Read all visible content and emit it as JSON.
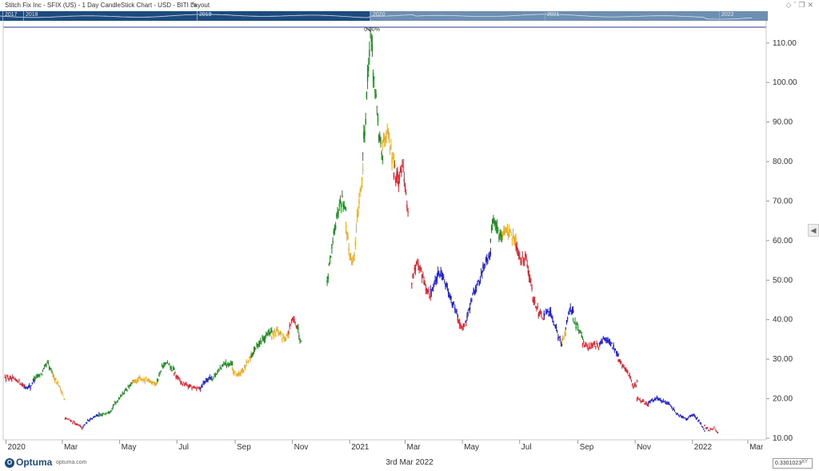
{
  "window": {
    "title": "Stitch Fix Inc  - SFIX (US) - 1 Day CandleStick Chart - USD - BITI Layout",
    "icons": [
      "diamond-icon",
      "chevron-up-icon",
      "restore-icon",
      "close-icon"
    ]
  },
  "navigator": {
    "years": [
      "2017",
      "2018",
      "2019",
      "2020",
      "2021",
      "2022"
    ]
  },
  "chart_data": {
    "type": "candlestick",
    "ylim": [
      10,
      114
    ],
    "y_ticks": [
      "110.00",
      "100.00",
      "90.00",
      "80.00",
      "70.00",
      "60.00",
      "50.00",
      "40.00",
      "30.00",
      "20.00",
      "10.00"
    ],
    "x_ticks": [
      "2020",
      "Mar",
      "May",
      "Jul",
      "Sep",
      "Nov",
      "2021",
      "Mar",
      "May",
      "Jul",
      "Sep",
      "Nov",
      "2022",
      "Mar"
    ],
    "peak_label": "0.00%",
    "colors": {
      "red": "#e0202a",
      "blue": "#1b1bd6",
      "green": "#1e8a1e",
      "orange": "#f0a818"
    },
    "segments": [
      {
        "color": "red",
        "start": "2019-12-31",
        "points": [
          [
            0,
            25.5
          ],
          [
            7,
            24.8
          ],
          [
            14,
            24.6
          ],
          [
            21,
            23.0
          ]
        ]
      },
      {
        "color": "blue",
        "start": "2020-01-21",
        "points": [
          [
            0,
            23.0
          ],
          [
            6,
            23.0
          ],
          [
            10,
            25.0
          ]
        ]
      },
      {
        "color": "green",
        "start": "2020-01-31",
        "points": [
          [
            0,
            25.0
          ],
          [
            8,
            26.5
          ],
          [
            14,
            29.0
          ],
          [
            20,
            26.0
          ]
        ]
      },
      {
        "color": "orange",
        "start": "2020-02-20",
        "points": [
          [
            0,
            26.0
          ],
          [
            5,
            24.0
          ],
          [
            9,
            22.0
          ],
          [
            12,
            20.0
          ]
        ]
      },
      {
        "color": "red",
        "start": "2020-03-04",
        "points": [
          [
            0,
            15.0
          ],
          [
            6,
            14.5
          ],
          [
            12,
            13.5
          ],
          [
            19,
            12.5
          ]
        ]
      },
      {
        "color": "blue",
        "start": "2020-03-23",
        "points": [
          [
            0,
            13.0
          ],
          [
            8,
            15.0
          ],
          [
            17,
            16.0
          ]
        ]
      },
      {
        "color": "green",
        "start": "2020-04-09",
        "points": [
          [
            0,
            15.5
          ],
          [
            12,
            17.0
          ],
          [
            24,
            21.0
          ],
          [
            36,
            24.0
          ]
        ]
      },
      {
        "color": "orange",
        "start": "2020-05-15",
        "points": [
          [
            0,
            24.0
          ],
          [
            8,
            25.0
          ],
          [
            16,
            24.5
          ],
          [
            26,
            24.0
          ]
        ]
      },
      {
        "color": "green",
        "start": "2020-06-10",
        "points": [
          [
            0,
            24.5
          ],
          [
            5,
            28.0
          ],
          [
            10,
            29.0
          ],
          [
            18,
            27.0
          ]
        ]
      },
      {
        "color": "red",
        "start": "2020-06-28",
        "points": [
          [
            0,
            26.5
          ],
          [
            8,
            24.0
          ],
          [
            18,
            23.0
          ],
          [
            28,
            22.5
          ]
        ]
      },
      {
        "color": "blue",
        "start": "2020-07-26",
        "points": [
          [
            0,
            23.0
          ],
          [
            7,
            25.0
          ],
          [
            12,
            25.5
          ]
        ]
      },
      {
        "color": "green",
        "start": "2020-08-07",
        "points": [
          [
            0,
            25.0
          ],
          [
            7,
            27.0
          ],
          [
            14,
            29.0
          ],
          [
            22,
            28.5
          ]
        ]
      },
      {
        "color": "orange",
        "start": "2020-08-29",
        "points": [
          [
            0,
            27.0
          ],
          [
            7,
            26.0
          ],
          [
            14,
            28.0
          ],
          [
            20,
            31.0
          ]
        ]
      },
      {
        "color": "green",
        "start": "2020-09-18",
        "points": [
          [
            0,
            31.0
          ],
          [
            8,
            34.0
          ],
          [
            16,
            36.0
          ],
          [
            22,
            37.0
          ]
        ]
      },
      {
        "color": "orange",
        "start": "2020-10-10",
        "points": [
          [
            0,
            36.0
          ],
          [
            6,
            37.0
          ],
          [
            12,
            35.5
          ],
          [
            18,
            36.0
          ]
        ]
      },
      {
        "color": "red",
        "start": "2020-10-28",
        "points": [
          [
            0,
            37.0
          ],
          [
            4,
            40.0
          ],
          [
            8,
            39.0
          ],
          [
            10,
            38.0
          ]
        ]
      },
      {
        "color": "green",
        "start": "2020-11-07",
        "points": [
          [
            0,
            37.0
          ],
          [
            3,
            35.0
          ]
        ]
      },
      {
        "color": "green",
        "start": "2020-12-08",
        "points": [
          [
            0,
            50.0
          ],
          [
            3,
            55.0
          ],
          [
            7,
            62.0
          ],
          [
            11,
            67.0
          ],
          [
            16,
            71.0
          ],
          [
            20,
            67.0
          ]
        ]
      },
      {
        "color": "orange",
        "start": "2020-12-28",
        "points": [
          [
            0,
            63.0
          ],
          [
            3,
            58.0
          ],
          [
            6,
            55.0
          ],
          [
            9,
            56.0
          ],
          [
            12,
            66.0
          ],
          [
            15,
            72.0
          ],
          [
            18,
            78.0
          ]
        ]
      },
      {
        "color": "green",
        "start": "2021-01-15",
        "points": [
          [
            0,
            82.0
          ],
          [
            3,
            92.0
          ],
          [
            5,
            100.0
          ],
          [
            7,
            108.0
          ],
          [
            8,
            113.0
          ],
          [
            11,
            104.0
          ],
          [
            14,
            95.0
          ],
          [
            18,
            85.0
          ],
          [
            21,
            80.0
          ]
        ]
      },
      {
        "color": "orange",
        "start": "2021-02-05",
        "points": [
          [
            0,
            85.0
          ],
          [
            4,
            88.0
          ],
          [
            8,
            84.0
          ],
          [
            12,
            79.0
          ]
        ]
      },
      {
        "color": "red",
        "start": "2021-02-17",
        "points": [
          [
            0,
            78.0
          ],
          [
            5,
            76.0
          ],
          [
            9,
            80.0
          ],
          [
            12,
            74.0
          ],
          [
            15,
            67.0
          ]
        ]
      },
      {
        "color": "red",
        "start": "2021-03-08",
        "points": [
          [
            0,
            50.0
          ],
          [
            5,
            54.0
          ],
          [
            10,
            52.0
          ],
          [
            15,
            48.0
          ],
          [
            20,
            46.0
          ]
        ]
      },
      {
        "color": "blue",
        "start": "2021-03-28",
        "points": [
          [
            0,
            47.0
          ],
          [
            6,
            50.0
          ],
          [
            12,
            52.0
          ],
          [
            18,
            48.0
          ],
          [
            24,
            44.0
          ],
          [
            29,
            41.0
          ]
        ]
      },
      {
        "color": "red",
        "start": "2021-04-26",
        "points": [
          [
            0,
            40.0
          ],
          [
            5,
            38.0
          ],
          [
            9,
            39.0
          ]
        ]
      },
      {
        "color": "blue",
        "start": "2021-05-05",
        "points": [
          [
            0,
            40.0
          ],
          [
            7,
            46.0
          ],
          [
            14,
            50.0
          ],
          [
            21,
            55.0
          ],
          [
            26,
            57.0
          ]
        ]
      },
      {
        "color": "green",
        "start": "2021-05-31",
        "points": [
          [
            0,
            60.0
          ],
          [
            3,
            66.0
          ],
          [
            6,
            64.0
          ],
          [
            9,
            61.0
          ],
          [
            12,
            62.0
          ]
        ]
      },
      {
        "color": "orange",
        "start": "2021-06-12",
        "points": [
          [
            0,
            62.0
          ],
          [
            5,
            63.0
          ],
          [
            10,
            61.0
          ],
          [
            15,
            60.0
          ]
        ]
      },
      {
        "color": "red",
        "start": "2021-06-27",
        "points": [
          [
            0,
            58.0
          ],
          [
            5,
            55.0
          ],
          [
            10,
            56.0
          ],
          [
            14,
            52.0
          ],
          [
            18,
            46.0
          ],
          [
            24,
            42.0
          ],
          [
            30,
            40.0
          ]
        ]
      },
      {
        "color": "blue",
        "start": "2021-07-27",
        "points": [
          [
            0,
            41.0
          ],
          [
            5,
            42.0
          ],
          [
            10,
            40.0
          ],
          [
            15,
            36.0
          ],
          [
            19,
            34.0
          ]
        ]
      },
      {
        "color": "orange",
        "start": "2021-08-15",
        "points": [
          [
            0,
            35.0
          ],
          [
            4,
            36.0
          ]
        ]
      },
      {
        "color": "blue",
        "start": "2021-08-19",
        "points": [
          [
            0,
            38.0
          ],
          [
            4,
            43.0
          ],
          [
            8,
            42.0
          ]
        ]
      },
      {
        "color": "green",
        "start": "2021-08-27",
        "points": [
          [
            0,
            40.0
          ],
          [
            5,
            38.0
          ],
          [
            10,
            35.0
          ]
        ]
      },
      {
        "color": "red",
        "start": "2021-09-06",
        "points": [
          [
            0,
            34.0
          ],
          [
            6,
            33.0
          ],
          [
            12,
            34.0
          ],
          [
            18,
            33.0
          ]
        ]
      },
      {
        "color": "blue",
        "start": "2021-09-24",
        "points": [
          [
            0,
            34.0
          ],
          [
            5,
            35.0
          ],
          [
            10,
            34.0
          ],
          [
            15,
            33.0
          ],
          [
            20,
            31.0
          ]
        ]
      },
      {
        "color": "red",
        "start": "2021-10-14",
        "points": [
          [
            0,
            30.0
          ],
          [
            6,
            28.0
          ],
          [
            12,
            26.0
          ],
          [
            16,
            23.0
          ],
          [
            20,
            24.0
          ]
        ]
      },
      {
        "color": "red",
        "start": "2021-11-03",
        "points": [
          [
            0,
            20.0
          ],
          [
            6,
            19.0
          ],
          [
            12,
            18.5
          ]
        ]
      },
      {
        "color": "blue",
        "start": "2021-11-15",
        "points": [
          [
            0,
            19.0
          ],
          [
            8,
            20.0
          ],
          [
            16,
            19.5
          ],
          [
            24,
            18.0
          ],
          [
            32,
            16.0
          ],
          [
            40,
            15.0
          ],
          [
            48,
            16.0
          ],
          [
            55,
            14.0
          ],
          [
            60,
            12.0
          ]
        ]
      },
      {
        "color": "red",
        "start": "2022-01-14",
        "points": [
          [
            0,
            13.0
          ],
          [
            5,
            12.0
          ],
          [
            10,
            12.5
          ],
          [
            14,
            11.5
          ]
        ]
      }
    ]
  },
  "footer": {
    "logo_text": "Optuma",
    "logo_url": "optuma.com",
    "date": "3rd Mar 2022",
    "cursor_value": "0.3301023",
    "xy_label": "XY"
  }
}
